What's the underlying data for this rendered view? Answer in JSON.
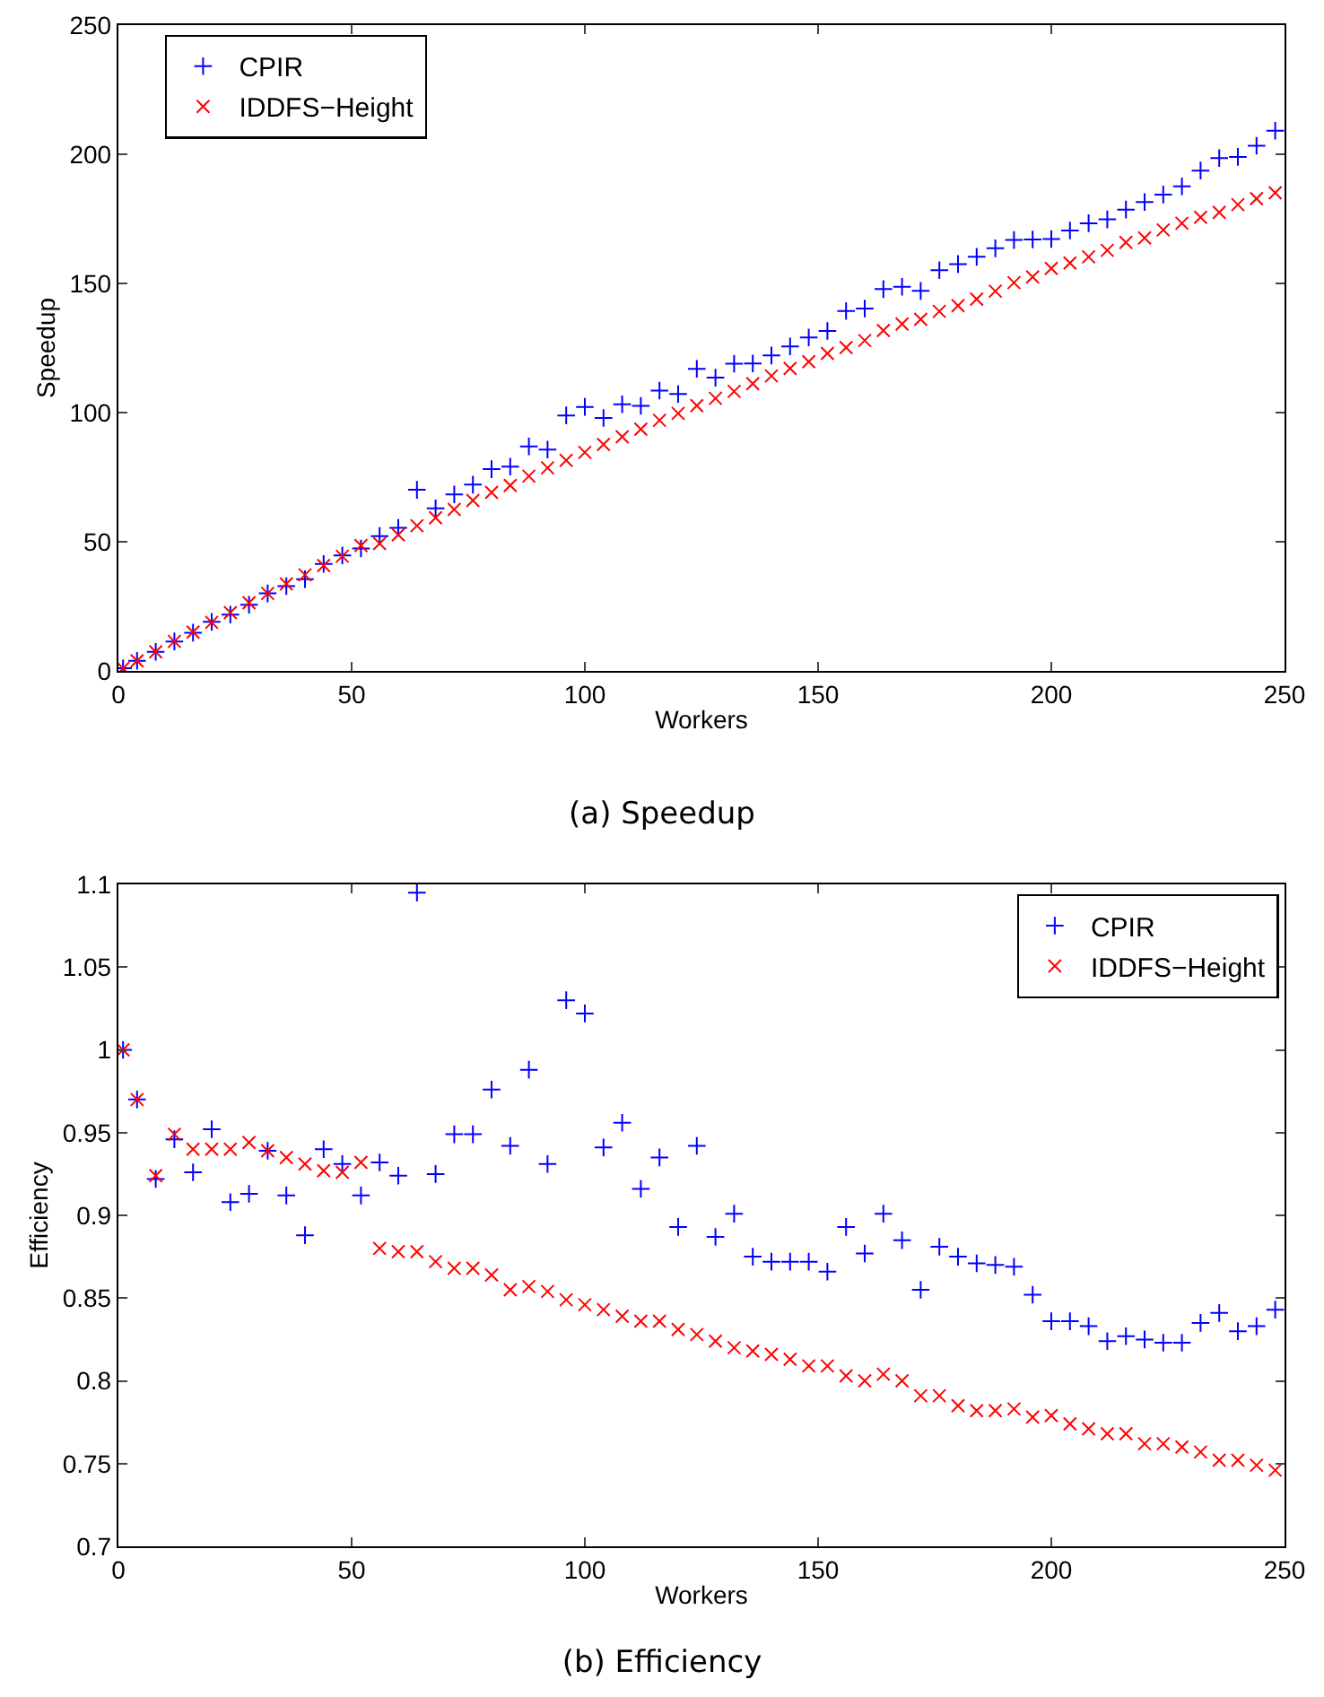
{
  "chart_data": [
    {
      "type": "scatter",
      "title": "(a) Speedup",
      "xlabel": "Workers",
      "ylabel": "Speedup",
      "xlim": [
        0,
        250
      ],
      "xticks": [
        0,
        50,
        100,
        150,
        200,
        250
      ],
      "ylim": [
        0,
        250
      ],
      "yticks": [
        0,
        50,
        100,
        150,
        200,
        250
      ],
      "grid": false,
      "legend": "top left",
      "x": [
        1,
        4,
        8,
        12,
        16,
        20,
        24,
        28,
        32,
        36,
        40,
        44,
        48,
        52,
        56,
        60,
        64,
        68,
        72,
        76,
        80,
        84,
        88,
        92,
        96,
        100,
        104,
        108,
        112,
        116,
        120,
        124,
        128,
        132,
        136,
        140,
        144,
        148,
        152,
        156,
        160,
        164,
        168,
        172,
        176,
        180,
        184,
        188,
        192,
        196,
        200,
        204,
        208,
        212,
        216,
        220,
        224,
        228,
        232,
        236,
        240,
        244,
        248
      ],
      "series": [
        {
          "name": "CPIR",
          "color": "#0000ff",
          "marker": "cross",
          "values": [
            1,
            3.9,
            7.4,
            11.4,
            14.8,
            19,
            21.8,
            25.6,
            30,
            32.8,
            35.5,
            41.4,
            44.7,
            47.4,
            52.2,
            55.4,
            70.1,
            62.9,
            68.3,
            72.1,
            78.1,
            79.1,
            86.9,
            85.7,
            98.9,
            102.2,
            97.9,
            103.2,
            102.6,
            108.5,
            107.2,
            116.9,
            113.5,
            118.9,
            119,
            122.1,
            125.6,
            129.1,
            131.6,
            139.3,
            140.3,
            147.8,
            148.7,
            147.1,
            155.1,
            157.5,
            160.3,
            163.6,
            166.8,
            167,
            167.2,
            170.5,
            173.3,
            174.8,
            178.6,
            181.5,
            184.4,
            187.6,
            193.7,
            198.5,
            199,
            203.3,
            209.1
          ]
        },
        {
          "name": "IDDFS−Height",
          "color": "#ff0000",
          "marker": "x",
          "values": [
            1,
            3.9,
            7.4,
            11.4,
            15,
            18.8,
            22.6,
            26.4,
            30,
            33.7,
            37.2,
            40.8,
            44.4,
            48.5,
            49.3,
            52.7,
            56.2,
            59.3,
            62.5,
            66,
            69.1,
            71.8,
            75.4,
            78.6,
            81.5,
            84.6,
            87.7,
            90.6,
            93.6,
            97,
            99.7,
            102.7,
            105.5,
            108.2,
            111.2,
            114.2,
            117.1,
            119.7,
            122.9,
            125.2,
            127.9,
            131.8,
            134.3,
            136.1,
            139.2,
            141.4,
            143.9,
            147,
            150.3,
            152.5,
            155.8,
            157.9,
            160.3,
            162.8,
            165.9,
            167.6,
            170.7,
            173.3,
            175.6,
            177.5,
            180.5,
            182.8,
            185.1
          ]
        }
      ]
    },
    {
      "type": "scatter",
      "title": "(b) Efficiency",
      "xlabel": "Workers",
      "ylabel": "Efficiency",
      "xlim": [
        0,
        250
      ],
      "xticks": [
        0,
        50,
        100,
        150,
        200,
        250
      ],
      "ylim": [
        0.7,
        1.1
      ],
      "yticks": [
        0.7,
        0.75,
        0.8,
        0.85,
        0.9,
        0.95,
        1,
        1.05,
        1.1
      ],
      "grid": false,
      "legend": "top right",
      "x": [
        1,
        4,
        8,
        12,
        16,
        20,
        24,
        28,
        32,
        36,
        40,
        44,
        48,
        52,
        56,
        60,
        64,
        68,
        72,
        76,
        80,
        84,
        88,
        92,
        96,
        100,
        104,
        108,
        112,
        116,
        120,
        124,
        128,
        132,
        136,
        140,
        144,
        148,
        152,
        156,
        160,
        164,
        168,
        172,
        176,
        180,
        184,
        188,
        192,
        196,
        200,
        204,
        208,
        212,
        216,
        220,
        224,
        228,
        232,
        236,
        240,
        244,
        248
      ],
      "series": [
        {
          "name": "CPIR",
          "color": "#0000ff",
          "marker": "cross",
          "values": [
            1,
            0.97,
            0.922,
            0.946,
            0.926,
            0.952,
            0.908,
            0.913,
            0.939,
            0.912,
            0.888,
            0.94,
            0.931,
            0.912,
            0.932,
            0.924,
            1.095,
            0.925,
            0.949,
            0.949,
            0.976,
            0.942,
            0.988,
            0.931,
            1.03,
            1.022,
            0.941,
            0.956,
            0.916,
            0.935,
            0.893,
            0.942,
            0.887,
            0.901,
            0.875,
            0.872,
            0.872,
            0.872,
            0.866,
            0.893,
            0.877,
            0.901,
            0.885,
            0.855,
            0.881,
            0.875,
            0.871,
            0.87,
            0.869,
            0.852,
            0.836,
            0.836,
            0.833,
            0.824,
            0.827,
            0.825,
            0.823,
            0.823,
            0.835,
            0.841,
            0.83,
            0.833,
            0.843
          ]
        },
        {
          "name": "IDDFS−Height",
          "color": "#ff0000",
          "marker": "x",
          "values": [
            1,
            0.97,
            0.924,
            0.949,
            0.94,
            0.94,
            0.94,
            0.944,
            0.939,
            0.935,
            0.931,
            0.927,
            0.926,
            0.932,
            0.88,
            0.878,
            0.878,
            0.872,
            0.868,
            0.868,
            0.864,
            0.855,
            0.857,
            0.854,
            0.849,
            0.846,
            0.843,
            0.839,
            0.836,
            0.836,
            0.831,
            0.828,
            0.824,
            0.82,
            0.818,
            0.816,
            0.813,
            0.809,
            0.809,
            0.803,
            0.8,
            0.804,
            0.8,
            0.791,
            0.791,
            0.785,
            0.782,
            0.782,
            0.783,
            0.778,
            0.779,
            0.774,
            0.771,
            0.768,
            0.768,
            0.762,
            0.762,
            0.76,
            0.757,
            0.752,
            0.752,
            0.749,
            0.746
          ]
        }
      ]
    }
  ]
}
